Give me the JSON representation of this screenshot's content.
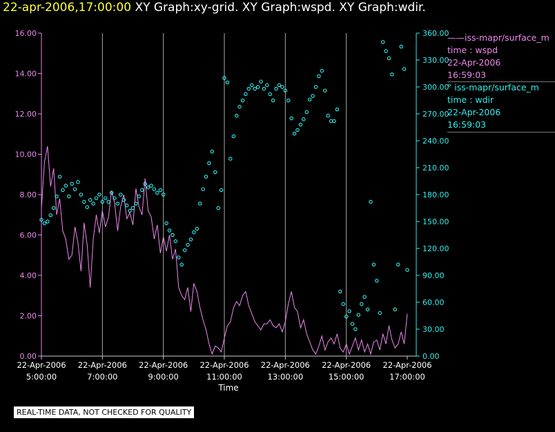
{
  "header": {
    "timestamp": "22-apr-2006,17:00:00",
    "graphs": "XY Graph:xy-grid.  XY Graph:wspd.  XY Graph:wdir."
  },
  "footer_note": "REAL-TIME DATA, NOT CHECKED FOR QUALITY",
  "legend": [
    {
      "line1": "——iss-mapr/surface_m",
      "line2": "time : wspd",
      "line3": "22-Apr-2006",
      "line4": "16:59:03"
    },
    {
      "line1": "° iss-mapr/surface_m",
      "line2": "time : wdir",
      "line3": "22-Apr-2006",
      "line4": "16:59:03"
    }
  ],
  "colors": {
    "wspd": "#ee88ee",
    "wdir": "#33eeee",
    "grid": "#aaaaaa",
    "timestamp": "#ffff33"
  },
  "chart_data": {
    "type": "line",
    "xlabel": "Time",
    "x_range": [
      "05:00",
      "17:00"
    ],
    "x_ticks": [
      {
        "date": "22-Apr-2006",
        "time": "5:00:00"
      },
      {
        "date": "22-Apr-2006",
        "time": "7:00:00"
      },
      {
        "date": "22-Apr-2006",
        "time": "9:00:00"
      },
      {
        "date": "22-Apr-2006",
        "time": "11:00:00"
      },
      {
        "date": "22-Apr-2006",
        "time": "13:00:00"
      },
      {
        "date": "22-Apr-2006",
        "time": "15:00:00"
      },
      {
        "date": "22-Apr-2006",
        "time": "17:00:00"
      }
    ],
    "y_left": {
      "range": [
        0,
        16
      ],
      "ticks": [
        "0.00",
        "2.00",
        "4.00",
        "6.00",
        "8.00",
        "10.00",
        "12.00",
        "14.00",
        "16.00"
      ]
    },
    "y_right": {
      "range": [
        0,
        360
      ],
      "ticks": [
        "0.00",
        "30.00",
        "60.00",
        "90.00",
        "120.00",
        "150.00",
        "180.00",
        "210.00",
        "240.00",
        "270.00",
        "300.00",
        "330.00",
        "360.00"
      ]
    },
    "vertical_grid": true,
    "series": [
      {
        "key": "wspd",
        "axis": "left",
        "style": "line",
        "points": [
          [
            "05:00",
            7.3
          ],
          [
            "05:06",
            9.6
          ],
          [
            "05:12",
            10.4
          ],
          [
            "05:18",
            8.4
          ],
          [
            "05:24",
            9.3
          ],
          [
            "05:30",
            7.0
          ],
          [
            "05:36",
            7.8
          ],
          [
            "05:42",
            6.2
          ],
          [
            "05:48",
            5.8
          ],
          [
            "05:54",
            4.8
          ],
          [
            "06:00",
            5.0
          ],
          [
            "06:06",
            6.4
          ],
          [
            "06:12",
            5.6
          ],
          [
            "06:18",
            4.2
          ],
          [
            "06:24",
            6.6
          ],
          [
            "06:30",
            5.5
          ],
          [
            "06:36",
            3.4
          ],
          [
            "06:42",
            5.8
          ],
          [
            "06:48",
            7.0
          ],
          [
            "06:54",
            6.1
          ],
          [
            "07:00",
            7.2
          ],
          [
            "07:06",
            6.4
          ],
          [
            "07:12",
            6.9
          ],
          [
            "07:18",
            8.2
          ],
          [
            "07:24",
            7.6
          ],
          [
            "07:30",
            6.2
          ],
          [
            "07:36",
            7.4
          ],
          [
            "07:42",
            8.0
          ],
          [
            "07:48",
            6.8
          ],
          [
            "07:54",
            7.1
          ],
          [
            "08:00",
            6.5
          ],
          [
            "08:06",
            8.3
          ],
          [
            "08:12",
            7.4
          ],
          [
            "08:18",
            7.0
          ],
          [
            "08:24",
            8.8
          ],
          [
            "08:30",
            7.2
          ],
          [
            "08:36",
            6.9
          ],
          [
            "08:42",
            5.8
          ],
          [
            "08:48",
            6.5
          ],
          [
            "08:54",
            5.1
          ],
          [
            "09:00",
            5.9
          ],
          [
            "09:06",
            5.2
          ],
          [
            "09:12",
            6.0
          ],
          [
            "09:18",
            4.8
          ],
          [
            "09:24",
            5.3
          ],
          [
            "09:30",
            3.4
          ],
          [
            "09:36",
            3.0
          ],
          [
            "09:42",
            2.8
          ],
          [
            "09:48",
            3.4
          ],
          [
            "09:54",
            2.2
          ],
          [
            "10:00",
            3.6
          ],
          [
            "10:06",
            3.2
          ],
          [
            "10:12",
            2.4
          ],
          [
            "10:18",
            1.8
          ],
          [
            "10:24",
            1.3
          ],
          [
            "10:30",
            0.6
          ],
          [
            "10:36",
            0.1
          ],
          [
            "10:42",
            0.5
          ],
          [
            "10:48",
            0.4
          ],
          [
            "10:54",
            0.2
          ],
          [
            "11:00",
            0.9
          ],
          [
            "11:06",
            1.5
          ],
          [
            "11:12",
            1.7
          ],
          [
            "11:18",
            2.4
          ],
          [
            "11:24",
            2.7
          ],
          [
            "11:30",
            2.5
          ],
          [
            "11:36",
            3.0
          ],
          [
            "11:42",
            3.2
          ],
          [
            "11:48",
            2.5
          ],
          [
            "11:54",
            2.1
          ],
          [
            "12:00",
            1.7
          ],
          [
            "12:06",
            1.5
          ],
          [
            "12:12",
            1.3
          ],
          [
            "12:18",
            1.6
          ],
          [
            "12:24",
            1.6
          ],
          [
            "12:30",
            1.8
          ],
          [
            "12:36",
            1.5
          ],
          [
            "12:42",
            1.4
          ],
          [
            "12:48",
            1.6
          ],
          [
            "12:54",
            1.2
          ],
          [
            "13:00",
            1.7
          ],
          [
            "13:06",
            2.6
          ],
          [
            "13:12",
            3.2
          ],
          [
            "13:18",
            2.4
          ],
          [
            "13:24",
            2.2
          ],
          [
            "13:30",
            1.4
          ],
          [
            "13:36",
            1.8
          ],
          [
            "13:42",
            1.1
          ],
          [
            "13:48",
            0.7
          ],
          [
            "13:54",
            0.3
          ],
          [
            "14:00",
            0.1
          ],
          [
            "14:06",
            0.5
          ],
          [
            "14:12",
            1.0
          ],
          [
            "14:18",
            0.3
          ],
          [
            "14:24",
            0.7
          ],
          [
            "14:30",
            0.9
          ],
          [
            "14:36",
            0.6
          ],
          [
            "14:42",
            1.1
          ],
          [
            "14:48",
            0.4
          ],
          [
            "14:54",
            0.2
          ],
          [
            "15:00",
            0.6
          ],
          [
            "15:06",
            0.1
          ],
          [
            "15:12",
            0.5
          ],
          [
            "15:18",
            0.9
          ],
          [
            "15:24",
            0.3
          ],
          [
            "15:30",
            0.8
          ],
          [
            "15:36",
            0.2
          ],
          [
            "15:42",
            0.6
          ],
          [
            "15:48",
            0.1
          ],
          [
            "15:54",
            0.7
          ],
          [
            "16:00",
            0.8
          ],
          [
            "16:06",
            0.3
          ],
          [
            "16:12",
            1.1
          ],
          [
            "16:18",
            0.6
          ],
          [
            "16:24",
            1.5
          ],
          [
            "16:30",
            0.8
          ],
          [
            "16:36",
            0.4
          ],
          [
            "16:42",
            0.6
          ],
          [
            "16:48",
            1.2
          ],
          [
            "16:54",
            0.6
          ],
          [
            "17:00",
            2.1
          ]
        ]
      },
      {
        "key": "wdir",
        "axis": "right",
        "style": "markers",
        "points": [
          [
            "05:00",
            152
          ],
          [
            "05:06",
            148
          ],
          [
            "05:12",
            150
          ],
          [
            "05:18",
            157
          ],
          [
            "05:24",
            165
          ],
          [
            "05:30",
            178
          ],
          [
            "05:36",
            200
          ],
          [
            "05:42",
            185
          ],
          [
            "05:48",
            190
          ],
          [
            "05:54",
            178
          ],
          [
            "06:00",
            192
          ],
          [
            "06:06",
            186
          ],
          [
            "06:12",
            194
          ],
          [
            "06:18",
            180
          ],
          [
            "06:24",
            172
          ],
          [
            "06:30",
            166
          ],
          [
            "06:36",
            174
          ],
          [
            "06:42",
            170
          ],
          [
            "06:48",
            176
          ],
          [
            "06:54",
            180
          ],
          [
            "07:00",
            172
          ],
          [
            "07:06",
            176
          ],
          [
            "07:12",
            172
          ],
          [
            "07:18",
            182
          ],
          [
            "07:24",
            176
          ],
          [
            "07:30",
            170
          ],
          [
            "07:36",
            180
          ],
          [
            "07:42",
            174
          ],
          [
            "07:48",
            168
          ],
          [
            "07:54",
            162
          ],
          [
            "08:00",
            165
          ],
          [
            "08:06",
            170
          ],
          [
            "08:12",
            178
          ],
          [
            "08:18",
            185
          ],
          [
            "08:24",
            192
          ],
          [
            "08:30",
            188
          ],
          [
            "08:36",
            190
          ],
          [
            "08:42",
            186
          ],
          [
            "08:48",
            182
          ],
          [
            "08:54",
            185
          ],
          [
            "09:00",
            180
          ],
          [
            "09:06",
            148
          ],
          [
            "09:12",
            140
          ],
          [
            "09:18",
            135
          ],
          [
            "09:24",
            128
          ],
          [
            "09:30",
            110
          ],
          [
            "09:36",
            102
          ],
          [
            "09:42",
            118
          ],
          [
            "09:48",
            124
          ],
          [
            "09:54",
            130
          ],
          [
            "10:00",
            138
          ],
          [
            "10:06",
            142
          ],
          [
            "10:12",
            170
          ],
          [
            "10:18",
            186
          ],
          [
            "10:24",
            200
          ],
          [
            "10:30",
            215
          ],
          [
            "10:36",
            228
          ],
          [
            "10:42",
            205
          ],
          [
            "10:48",
            165
          ],
          [
            "10:54",
            185
          ],
          [
            "11:00",
            310
          ],
          [
            "11:06",
            305
          ],
          [
            "11:12",
            220
          ],
          [
            "11:18",
            245
          ],
          [
            "11:24",
            268
          ],
          [
            "11:30",
            278
          ],
          [
            "11:36",
            285
          ],
          [
            "11:42",
            292
          ],
          [
            "11:48",
            298
          ],
          [
            "11:54",
            302
          ],
          [
            "12:00",
            298
          ],
          [
            "12:06",
            300
          ],
          [
            "12:12",
            306
          ],
          [
            "12:18",
            298
          ],
          [
            "12:24",
            302
          ],
          [
            "12:30",
            292
          ],
          [
            "12:36",
            285
          ],
          [
            "12:42",
            298
          ],
          [
            "12:48",
            302
          ],
          [
            "12:54",
            300
          ],
          [
            "13:00",
            296
          ],
          [
            "13:06",
            285
          ],
          [
            "13:12",
            265
          ],
          [
            "13:18",
            248
          ],
          [
            "13:24",
            252
          ],
          [
            "13:30",
            258
          ],
          [
            "13:36",
            264
          ],
          [
            "13:42",
            272
          ],
          [
            "13:48",
            286
          ],
          [
            "13:54",
            290
          ],
          [
            "14:00",
            300
          ],
          [
            "14:06",
            312
          ],
          [
            "14:12",
            318
          ],
          [
            "14:18",
            296
          ],
          [
            "14:24",
            268
          ],
          [
            "14:30",
            262
          ],
          [
            "14:36",
            262
          ],
          [
            "14:42",
            275
          ],
          [
            "14:48",
            72
          ],
          [
            "14:54",
            58
          ],
          [
            "15:00",
            44
          ],
          [
            "15:06",
            50
          ],
          [
            "15:12",
            36
          ],
          [
            "15:18",
            30
          ],
          [
            "15:24",
            46
          ],
          [
            "15:30",
            58
          ],
          [
            "15:36",
            66
          ],
          [
            "15:42",
            52
          ],
          [
            "15:48",
            172
          ],
          [
            "15:54",
            102
          ],
          [
            "16:00",
            84
          ],
          [
            "16:06",
            48
          ],
          [
            "16:12",
            350
          ],
          [
            "16:18",
            340
          ],
          [
            "16:24",
            332
          ],
          [
            "16:30",
            314
          ],
          [
            "16:36",
            52
          ],
          [
            "16:42",
            102
          ],
          [
            "16:48",
            345
          ],
          [
            "16:54",
            320
          ],
          [
            "17:00",
            96
          ]
        ]
      }
    ]
  }
}
